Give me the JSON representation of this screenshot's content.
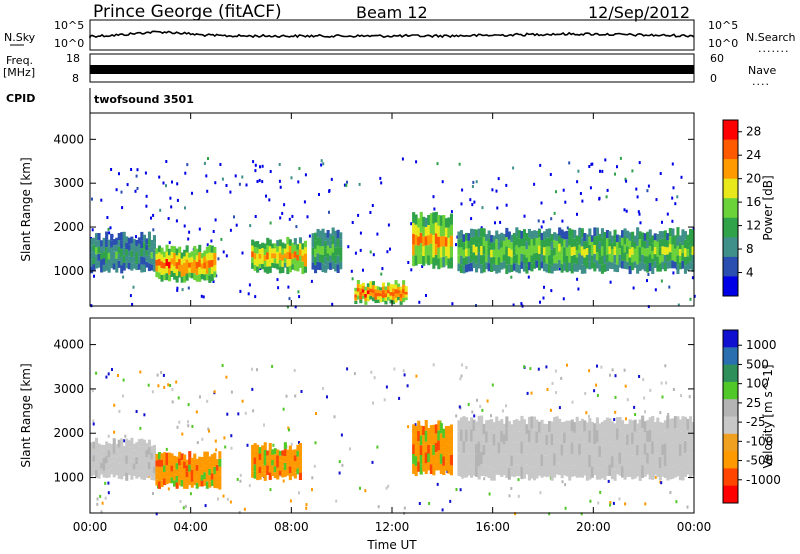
{
  "header": {
    "title_left": "Prince George (fitACF)",
    "title_center": "Beam 12",
    "title_right": "12/Sep/2012"
  },
  "top_panels": {
    "nsky_label": "N.Sky",
    "nsearch_label": "N.Search",
    "nsearch_dots": ".......",
    "freq_label": "Freq.",
    "freq_unit": "[MHz]",
    "nave_label": "Nave",
    "nave_dots": "....",
    "cpid_label": "CPID",
    "cpid_value": "twofsound 3501",
    "nsky_ticks": [
      "10^5",
      "10^0"
    ],
    "nsearch_ticks": [
      "10^5",
      "10^0"
    ],
    "freq_ticks": [
      "18",
      "8"
    ],
    "nave_ticks": [
      "60",
      "0"
    ]
  },
  "colors": {
    "power_scale": [
      "#0000e6",
      "#2a4fb0",
      "#3f8f8a",
      "#2fa24a",
      "#6bd23a",
      "#e8e81a",
      "#ff9a00",
      "#ff5a00",
      "#ff0000"
    ],
    "velocity_scale": [
      "#ff0000",
      "#ff4500",
      "#ff9900",
      "#f0a020",
      "#c8c8c8",
      "#b4b4b4",
      "#50c828",
      "#2f8f5a",
      "#2a6fb0",
      "#1010d0"
    ]
  },
  "chart_data": [
    {
      "type": "heatmap",
      "panel": "power",
      "ylabel": "Slant Range [km]",
      "yticks": [
        "1000",
        "2000",
        "3000",
        "4000"
      ],
      "ylim": [
        200,
        4600
      ],
      "colorbar_label": "Power [dB]",
      "colorbar_ticks": [
        "4",
        "8",
        "12",
        "16",
        "20",
        "24",
        "28"
      ],
      "colorbar_range": [
        0,
        30
      ],
      "bands": [
        {
          "t0": 0.0,
          "t1": 2.6,
          "r0": 1000,
          "r1": 1800,
          "value": 10
        },
        {
          "t0": 2.6,
          "t1": 5.0,
          "r0": 800,
          "r1": 1500,
          "value": 22
        },
        {
          "t0": 6.4,
          "t1": 8.6,
          "r0": 1000,
          "r1": 1700,
          "value": 20
        },
        {
          "t0": 8.8,
          "t1": 10.0,
          "r0": 1000,
          "r1": 1900,
          "value": 12
        },
        {
          "t0": 10.5,
          "t1": 12.6,
          "r0": 300,
          "r1": 700,
          "value": 24
        },
        {
          "t0": 12.8,
          "t1": 14.4,
          "r0": 1100,
          "r1": 2300,
          "value": 20
        },
        {
          "t0": 14.6,
          "t1": 24.0,
          "r0": 1000,
          "r1": 1900,
          "value": 14
        }
      ]
    },
    {
      "type": "heatmap",
      "panel": "velocity",
      "ylabel": "Slant Range [km]",
      "yticks": [
        "1000",
        "2000",
        "3000",
        "4000"
      ],
      "ylim": [
        200,
        4600
      ],
      "colorbar_label": "Velocity [m s^-1]",
      "colorbar_ticks": [
        "1000",
        "500",
        "100",
        "25",
        "-25",
        "-100",
        "-500",
        "-1000"
      ],
      "bands": [
        {
          "t0": 0.0,
          "t1": 2.6,
          "r0": 1000,
          "r1": 1800,
          "value": 0
        },
        {
          "t0": 2.6,
          "t1": 5.2,
          "r0": 800,
          "r1": 1500,
          "value": -200
        },
        {
          "t0": 6.4,
          "t1": 8.4,
          "r0": 1000,
          "r1": 1700,
          "value": -150
        },
        {
          "t0": 12.8,
          "t1": 14.4,
          "r0": 1100,
          "r1": 2200,
          "value": -200
        },
        {
          "t0": 14.6,
          "t1": 24.0,
          "r0": 1000,
          "r1": 2300,
          "value": 0
        }
      ],
      "xlabel": "Time UT",
      "xticks": [
        "00:00",
        "04:00",
        "08:00",
        "12:00",
        "16:00",
        "20:00",
        "00:00"
      ],
      "xlim": [
        0,
        24
      ]
    }
  ]
}
